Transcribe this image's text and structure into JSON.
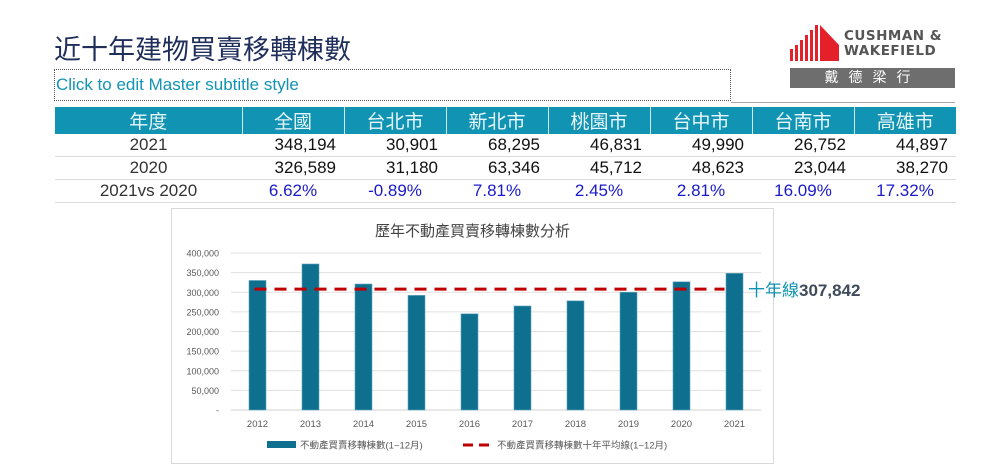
{
  "header": {
    "title": "近十年建物買賣移轉棟數",
    "subtitle": "Click to edit Master subtitle style"
  },
  "logo": {
    "line1": "CUSHMAN &",
    "line2": "WAKEFIELD",
    "chinese": "戴德梁行",
    "brand_red": "#e4202a",
    "band_grey": "#6e6e6e"
  },
  "table": {
    "header_color": "#1194b3",
    "columns": [
      "年度",
      "全國",
      "台北市",
      "新北市",
      "桃園市",
      "台中市",
      "台南市",
      "高雄市"
    ],
    "rows": [
      [
        "2021",
        "348,194",
        "30,901",
        "68,295",
        "46,831",
        "49,990",
        "26,752",
        "44,897"
      ],
      [
        "2020",
        "326,589",
        "31,180",
        "63,346",
        "45,712",
        "48,623",
        "23,044",
        "38,270"
      ],
      [
        "2021vs 2020",
        "6.62%",
        "-0.89%",
        "7.81%",
        "2.45%",
        "2.81%",
        "16.09%",
        "17.32%"
      ]
    ]
  },
  "avg_label": {
    "prefix": "十年線",
    "value": "307,842"
  },
  "chart_data": {
    "type": "bar",
    "title": "歷年不動產買賣移轉棟數分析",
    "xlabel": "",
    "ylabel": "",
    "categories": [
      "2012",
      "2013",
      "2014",
      "2015",
      "2016",
      "2017",
      "2018",
      "2019",
      "2020",
      "2021"
    ],
    "series": [
      {
        "name": "不動產買賣移轉棟數(1~12月)",
        "type": "bar",
        "color": "#0e6f8e",
        "values": [
          330000,
          372000,
          321000,
          292000,
          245000,
          265000,
          278000,
          300000,
          326589,
          348194
        ]
      },
      {
        "name": "不動產買賣移轉棟數十年平均線(1~12月)",
        "type": "line",
        "style": "dashed",
        "color": "#c00000",
        "values": [
          307842,
          307842,
          307842,
          307842,
          307842,
          307842,
          307842,
          307842,
          307842,
          307842
        ]
      }
    ],
    "yticks": [
      "-",
      "50,000",
      "100,000",
      "150,000",
      "200,000",
      "250,000",
      "300,000",
      "350,000",
      "400,000"
    ],
    "ylim": [
      0,
      400000
    ],
    "grid": true,
    "legend_position": "bottom",
    "annotation": "十年線307,842"
  }
}
